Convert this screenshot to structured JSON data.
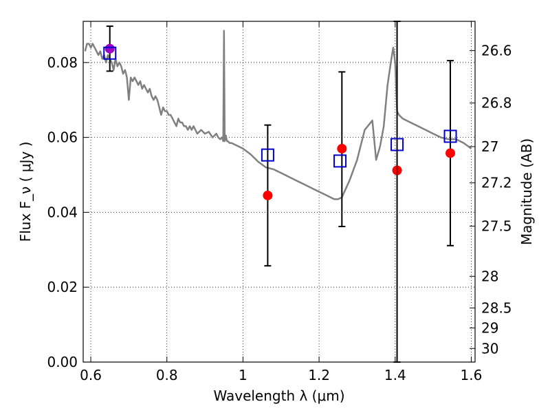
{
  "chart_data": {
    "type": "scatter",
    "xlabel": "Wavelength  λ (μm)",
    "ylabel": "Flux  F_ν  ( μJy )",
    "ylabel_right": "Magnitude (AB)",
    "xlim": [
      0.58,
      1.61
    ],
    "ylim": [
      0.0,
      0.091
    ],
    "grid": true,
    "x_ticks": [
      0.6,
      0.8,
      1.0,
      1.2,
      1.4,
      1.6
    ],
    "x_tick_labels": [
      "0.6",
      "0.8",
      "1",
      "1.2",
      "1.4",
      "1.6"
    ],
    "y_ticks": [
      0.0,
      0.02,
      0.04,
      0.06,
      0.08
    ],
    "y_tick_labels": [
      "0.00",
      "0.02",
      "0.04",
      "0.06",
      "0.08"
    ],
    "right_ticks": [
      26.6,
      26.8,
      27.0,
      27.2,
      27.5,
      28.0,
      28.5,
      29.0,
      30.0
    ],
    "right_tick_labels": [
      "26.6",
      "26.8",
      "27",
      "27.2",
      "27.5",
      "28",
      "28.5",
      "29",
      "30"
    ],
    "vline_x": 1.405,
    "series": [
      {
        "type": "line",
        "color": "#808080",
        "x": [
          0.585,
          0.59,
          0.595,
          0.6,
          0.605,
          0.61,
          0.615,
          0.62,
          0.625,
          0.63,
          0.635,
          0.64,
          0.645,
          0.65,
          0.655,
          0.66,
          0.665,
          0.67,
          0.675,
          0.68,
          0.685,
          0.69,
          0.695,
          0.7,
          0.705,
          0.71,
          0.715,
          0.72,
          0.725,
          0.73,
          0.735,
          0.74,
          0.745,
          0.75,
          0.755,
          0.76,
          0.765,
          0.77,
          0.775,
          0.78,
          0.785,
          0.79,
          0.795,
          0.8,
          0.805,
          0.81,
          0.815,
          0.82,
          0.825,
          0.83,
          0.835,
          0.84,
          0.845,
          0.85,
          0.855,
          0.86,
          0.865,
          0.87,
          0.88,
          0.89,
          0.9,
          0.91,
          0.92,
          0.93,
          0.935,
          0.94,
          0.945,
          0.948,
          0.95,
          0.952,
          0.955,
          0.958,
          0.96,
          0.965,
          0.97,
          0.98,
          1.0,
          1.02,
          1.04,
          1.06,
          1.08,
          1.1,
          1.12,
          1.14,
          1.16,
          1.18,
          1.2,
          1.22,
          1.24,
          1.25,
          1.26,
          1.28,
          1.3,
          1.32,
          1.34,
          1.35,
          1.36,
          1.37,
          1.38,
          1.39,
          1.395,
          1.4,
          1.405,
          1.41,
          1.42,
          1.44,
          1.46,
          1.48,
          1.5,
          1.52,
          1.54,
          1.56,
          1.58,
          1.6
        ],
        "y": [
          0.083,
          0.085,
          0.085,
          0.084,
          0.085,
          0.084,
          0.083,
          0.082,
          0.083,
          0.081,
          0.082,
          0.08,
          0.082,
          0.081,
          0.08,
          0.078,
          0.081,
          0.079,
          0.08,
          0.079,
          0.077,
          0.078,
          0.076,
          0.07,
          0.076,
          0.075,
          0.076,
          0.075,
          0.074,
          0.075,
          0.073,
          0.074,
          0.073,
          0.072,
          0.073,
          0.071,
          0.07,
          0.071,
          0.07,
          0.068,
          0.066,
          0.068,
          0.067,
          0.067,
          0.066,
          0.066,
          0.065,
          0.064,
          0.063,
          0.065,
          0.064,
          0.064,
          0.063,
          0.063,
          0.062,
          0.063,
          0.062,
          0.063,
          0.061,
          0.062,
          0.061,
          0.0615,
          0.06,
          0.061,
          0.06,
          0.0595,
          0.06,
          0.059,
          0.0885,
          0.059,
          0.0605,
          0.059,
          0.059,
          0.0585,
          0.0585,
          0.058,
          0.057,
          0.0555,
          0.0535,
          0.052,
          0.0515,
          0.0505,
          0.0495,
          0.0485,
          0.0475,
          0.0465,
          0.0455,
          0.0445,
          0.0435,
          0.0435,
          0.044,
          0.0485,
          0.054,
          0.062,
          0.0645,
          0.054,
          0.0575,
          0.063,
          0.074,
          0.081,
          0.084,
          0.08,
          0.067,
          0.066,
          0.065,
          0.064,
          0.063,
          0.062,
          0.061,
          0.06,
          0.0595,
          0.0595,
          0.0585,
          0.057
        ]
      },
      {
        "type": "errorbar",
        "color": "#000000",
        "x": [
          0.65,
          1.065,
          1.26,
          1.405,
          1.545
        ],
        "y": [
          0.0835,
          0.0445,
          0.057,
          0.0512,
          0.0558
        ],
        "yerr_low": [
          0.0777,
          0.0257,
          0.0362,
          0.0,
          0.0311
        ],
        "yerr_high": [
          0.0897,
          0.0633,
          0.0775,
          0.091,
          0.0805
        ]
      },
      {
        "type": "markers",
        "marker": "circle",
        "color": "#ff0000",
        "x": [
          1.065,
          1.26,
          1.405,
          1.545
        ],
        "y": [
          0.0445,
          0.057,
          0.0512,
          0.0558
        ]
      },
      {
        "type": "markers",
        "marker": "circle",
        "color": "#a000c8",
        "x": [
          0.65
        ],
        "y": [
          0.0837
        ]
      },
      {
        "type": "markers",
        "marker": "open-square",
        "color": "#0000cc",
        "x": [
          0.65,
          1.065,
          1.255,
          1.405,
          1.545
        ],
        "y": [
          0.0825,
          0.0553,
          0.0537,
          0.0581,
          0.0603
        ]
      }
    ]
  }
}
